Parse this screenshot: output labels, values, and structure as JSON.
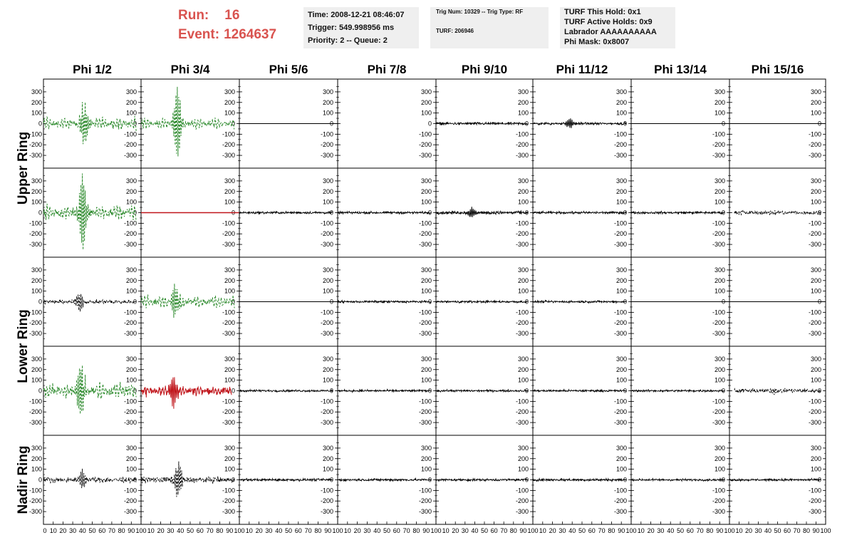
{
  "header": {
    "run_label": "Run:",
    "run_value": "16",
    "event_label": "Event:",
    "event_value": "1264637"
  },
  "info_panel_1": {
    "time": "Time: 2008-12-21 08:46:07",
    "trigger": "Trigger: 549.998956 ms",
    "priority": "Priority: 2 -- Queue: 2"
  },
  "info_panel_2": {
    "trig": "Trig Num: 10329 -- Trig Type: RF",
    "turf": "TURF: 206946"
  },
  "info_panel_3": {
    "this_hold": "TURF This Hold: 0x1",
    "active_holds": "TURF Active Holds: 0x9",
    "labrador": "Labrador AAAAAAAAAA",
    "phi_mask": "Phi Mask: 0x8007"
  },
  "colors": {
    "header_red": "#d9534f",
    "trace_black": "#000000",
    "trace_green": "#2e8b2e",
    "trace_red": "#c0161c",
    "info_bg": "#efefef"
  },
  "chart_data": {
    "type": "line",
    "columns": [
      "Phi 1/2",
      "Phi 3/4",
      "Phi 5/6",
      "Phi 7/8",
      "Phi 9/10",
      "Phi 11/12",
      "Phi 13/14",
      "Phi 15/16"
    ],
    "row_groups": [
      "Upper Ring",
      "Lower Ring",
      "Nadir Ring"
    ],
    "rows": 5,
    "ylim": [
      -380,
      380
    ],
    "y_ticks": [
      -300,
      -200,
      -100,
      0,
      100,
      200,
      300
    ],
    "xlim": [
      0,
      100
    ],
    "x_tick_labels": [
      "0",
      "10",
      "20",
      "30",
      "40",
      "50",
      "60",
      "70",
      "80",
      "90",
      "100"
    ],
    "panels": [
      [
        {
          "style": "green-dashed",
          "rms": 25,
          "pulse": {
            "center": 42,
            "amp": 180
          },
          "osc": 45
        },
        {
          "style": "green-dashed",
          "rms": 20,
          "pulse": {
            "center": 37,
            "amp": 300
          },
          "osc": 40
        },
        {
          "style": "flat"
        },
        {
          "style": "none"
        },
        {
          "style": "black",
          "rms": 10
        },
        {
          "style": "black",
          "rms": 9,
          "pulse": {
            "center": 38,
            "amp": 40
          }
        },
        {
          "style": "flat"
        },
        {
          "style": "flat"
        }
      ],
      [
        {
          "style": "green-dashed",
          "rms": 30,
          "pulse": {
            "center": 40,
            "amp": 340
          },
          "osc": 55
        },
        {
          "style": "red-flat"
        },
        {
          "style": "black",
          "rms": 9
        },
        {
          "style": "black",
          "rms": 9
        },
        {
          "style": "black",
          "rms": 12,
          "pulse": {
            "center": 37,
            "amp": 50
          }
        },
        {
          "style": "black",
          "rms": 9
        },
        {
          "style": "black",
          "rms": 9
        },
        {
          "style": "black-dashed-short",
          "rms": 14,
          "pulse": {
            "center": 45,
            "amp": 20
          }
        }
      ],
      [
        {
          "style": "black-dashed",
          "rms": 15,
          "pulse": {
            "center": 37,
            "amp": 80
          }
        },
        {
          "style": "green-dashed",
          "rms": 25,
          "pulse": {
            "center": 35,
            "amp": 150
          },
          "osc": 45
        },
        {
          "style": "flat"
        },
        {
          "style": "black",
          "rms": 8
        },
        {
          "style": "black",
          "rms": 8
        },
        {
          "style": "black",
          "rms": 8
        },
        {
          "style": "flat"
        },
        {
          "style": "flat"
        }
      ],
      [
        {
          "style": "green-dashed",
          "rms": 35,
          "pulse": {
            "center": 38,
            "amp": 260
          },
          "osc": 50
        },
        {
          "style": "red",
          "rms": 25,
          "pulse": {
            "center": 33,
            "amp": 150
          },
          "osc": 30
        },
        {
          "style": "black",
          "rms": 8
        },
        {
          "style": "black",
          "rms": 8
        },
        {
          "style": "black",
          "rms": 8
        },
        {
          "style": "black",
          "rms": 8
        },
        {
          "style": "black",
          "rms": 8
        },
        {
          "style": "black-dashed-short",
          "rms": 16,
          "pulse": {
            "center": 45,
            "amp": 25
          }
        }
      ],
      [
        {
          "style": "black-dashed",
          "rms": 20,
          "pulse": {
            "center": 40,
            "amp": 90
          }
        },
        {
          "style": "black-dashed",
          "rms": 22,
          "pulse": {
            "center": 38,
            "amp": 150
          }
        },
        {
          "style": "black",
          "rms": 9
        },
        {
          "style": "black",
          "rms": 9
        },
        {
          "style": "black",
          "rms": 9
        },
        {
          "style": "black",
          "rms": 10
        },
        {
          "style": "black",
          "rms": 8
        },
        {
          "style": "black",
          "rms": 8
        }
      ]
    ]
  }
}
